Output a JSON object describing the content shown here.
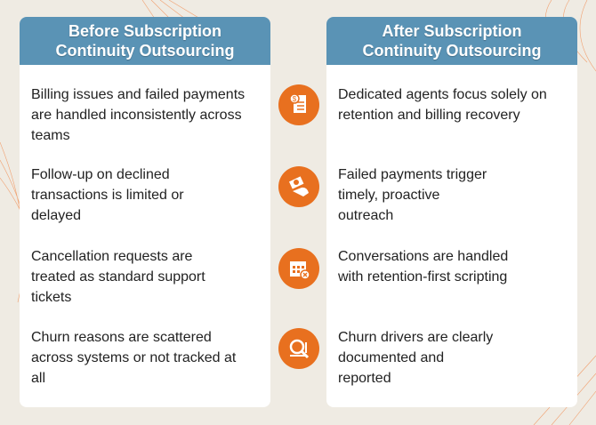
{
  "before": {
    "title_line1": "Before Subscription",
    "title_line2": "Continuity Outsourcing",
    "items": [
      "Billing issues and failed payments are handled inconsistently across teams",
      "Follow-up on declined transactions is limited or delayed",
      "Cancellation requests are treated as standard support tickets",
      "Churn reasons are scattered across systems or not tracked at all"
    ]
  },
  "after": {
    "title_line1": "After Subscription",
    "title_line2": "Continuity Outsourcing",
    "items": [
      "Dedicated agents focus solely on retention and billing recovery",
      "Failed payments trigger timely, proactive outreach",
      "Conversations are handled with retention-first scripting",
      "Churn drivers are clearly documented and reported"
    ]
  },
  "icons": [
    "invoice-dollar-icon",
    "hand-cash-icon",
    "calendar-cancel-icon",
    "analytics-magnifier-icon"
  ],
  "colors": {
    "header": "#5a93b5",
    "icon": "#e8701f",
    "background": "#efebe3"
  }
}
